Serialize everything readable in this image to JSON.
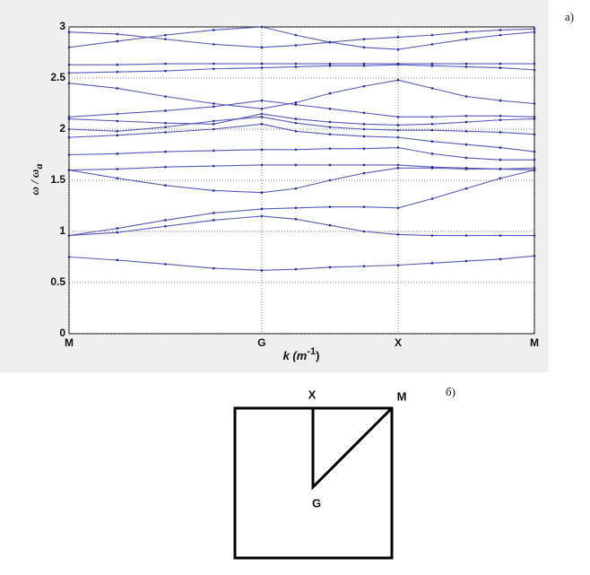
{
  "chart_data": {
    "type": "line",
    "annotation": "a)",
    "xlabel": {
      "main": "k (m",
      "sup": "-1",
      "end": ")"
    },
    "ylabel": {
      "main": "ω / ω",
      "sub": "a"
    },
    "color": "#5a5ab8",
    "x": [
      0,
      0.354,
      0.707,
      1.061,
      1.414,
      1.664,
      1.914,
      2.164,
      2.414,
      2.664,
      2.914,
      3.164,
      3.414
    ],
    "xlim": [
      0,
      3.414
    ],
    "xticks": [
      {
        "value": 0,
        "label": "M"
      },
      {
        "value": 1.414,
        "label": "G"
      },
      {
        "value": 2.414,
        "label": "X"
      },
      {
        "value": 3.414,
        "label": "M"
      }
    ],
    "ylim": [
      0,
      3
    ],
    "yticks": [
      0,
      0.5,
      1,
      1.5,
      2,
      2.5,
      3
    ],
    "grid": true,
    "series": [
      {
        "values": [
          0.75,
          0.72,
          0.68,
          0.64,
          0.62,
          0.63,
          0.65,
          0.66,
          0.67,
          0.69,
          0.71,
          0.73,
          0.76
        ]
      },
      {
        "values": [
          0.96,
          0.99,
          1.05,
          1.11,
          1.15,
          1.12,
          1.06,
          1.0,
          0.97,
          0.96,
          0.96,
          0.96,
          0.96
        ]
      },
      {
        "values": [
          0.96,
          1.03,
          1.11,
          1.18,
          1.22,
          1.23,
          1.24,
          1.24,
          1.23,
          1.32,
          1.42,
          1.52,
          1.6
        ]
      },
      {
        "values": [
          1.6,
          1.52,
          1.45,
          1.4,
          1.38,
          1.42,
          1.5,
          1.57,
          1.62,
          1.62,
          1.61,
          1.61,
          1.6
        ]
      },
      {
        "values": [
          1.6,
          1.61,
          1.63,
          1.64,
          1.65,
          1.65,
          1.65,
          1.65,
          1.65,
          1.63,
          1.62,
          1.61,
          1.62
        ]
      },
      {
        "values": [
          1.75,
          1.76,
          1.78,
          1.79,
          1.8,
          1.8,
          1.81,
          1.81,
          1.82,
          1.76,
          1.72,
          1.7,
          1.7
        ]
      },
      {
        "values": [
          1.92,
          1.94,
          1.97,
          2.0,
          2.05,
          1.98,
          1.95,
          1.93,
          1.92,
          1.88,
          1.85,
          1.82,
          1.78
        ]
      },
      {
        "values": [
          2.0,
          1.98,
          2.02,
          2.08,
          2.12,
          2.06,
          2.02,
          2.0,
          1.99,
          1.99,
          1.98,
          1.97,
          1.95
        ]
      },
      {
        "values": [
          2.1,
          2.08,
          2.06,
          2.05,
          2.15,
          2.1,
          2.07,
          2.05,
          2.04,
          2.05,
          2.07,
          2.09,
          2.1
        ]
      },
      {
        "values": [
          2.12,
          2.15,
          2.18,
          2.22,
          2.28,
          2.24,
          2.2,
          2.16,
          2.12,
          2.12,
          2.13,
          2.13,
          2.12
        ]
      },
      {
        "values": [
          2.45,
          2.4,
          2.32,
          2.25,
          2.2,
          2.26,
          2.35,
          2.42,
          2.48,
          2.4,
          2.32,
          2.28,
          2.25
        ]
      },
      {
        "values": [
          2.55,
          2.56,
          2.57,
          2.59,
          2.6,
          2.61,
          2.62,
          2.62,
          2.63,
          2.62,
          2.61,
          2.6,
          2.58
        ]
      },
      {
        "values": [
          2.63,
          2.63,
          2.64,
          2.64,
          2.64,
          2.64,
          2.64,
          2.64,
          2.64,
          2.64,
          2.64,
          2.64,
          2.64
        ]
      },
      {
        "values": [
          2.8,
          2.86,
          2.92,
          2.97,
          3.0,
          2.92,
          2.85,
          2.8,
          2.78,
          2.83,
          2.88,
          2.92,
          2.95
        ]
      },
      {
        "values": [
          2.95,
          2.93,
          2.88,
          2.83,
          2.8,
          2.82,
          2.85,
          2.88,
          2.9,
          2.92,
          2.95,
          2.97,
          2.98
        ]
      }
    ]
  },
  "diagram": {
    "label": "б)",
    "points": {
      "x": "X",
      "m": "M",
      "g": "G"
    }
  }
}
